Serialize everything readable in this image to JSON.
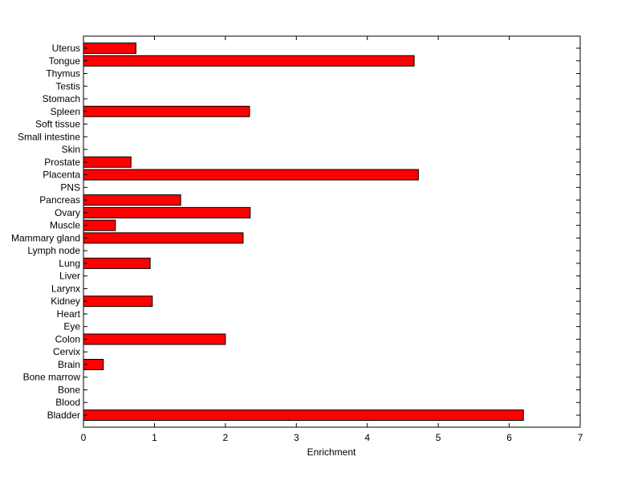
{
  "chart_data": {
    "type": "bar",
    "orientation": "horizontal",
    "title": "",
    "xlabel": "Enrichment",
    "ylabel": "",
    "xlim": [
      0,
      7
    ],
    "xticks": [
      "0",
      "1",
      "2",
      "3",
      "4",
      "5",
      "6",
      "7"
    ],
    "grid": false,
    "bar_color": "#ff0000",
    "bar_edge_color": "#000000",
    "categories": [
      "Bladder",
      "Blood",
      "Bone",
      "Bone marrow",
      "Brain",
      "Cervix",
      "Colon",
      "Eye",
      "Heart",
      "Kidney",
      "Larynx",
      "Liver",
      "Lung",
      "Lymph node",
      "Mammary gland",
      "Muscle",
      "Ovary",
      "Pancreas",
      "PNS",
      "Placenta",
      "Prostate",
      "Skin",
      "Small intestine",
      "Soft tissue",
      "Spleen",
      "Stomach",
      "Testis",
      "Thymus",
      "Tongue",
      "Uterus"
    ],
    "values": [
      6.2,
      0,
      0,
      0,
      0.28,
      0,
      2.0,
      0,
      0,
      0.97,
      0,
      0,
      0.94,
      0,
      2.25,
      0.45,
      2.35,
      1.37,
      0,
      4.72,
      0.67,
      0,
      0,
      0,
      2.34,
      0,
      0,
      0,
      4.66,
      0.74
    ]
  }
}
